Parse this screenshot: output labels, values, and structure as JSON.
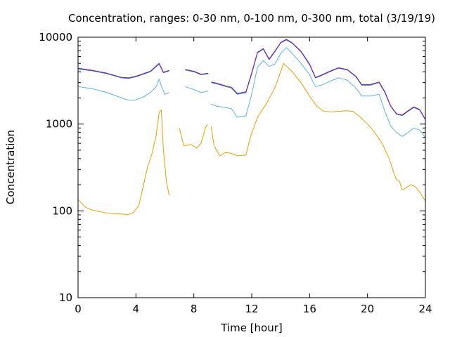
{
  "chart_data": {
    "type": "line",
    "title": "Concentration, ranges: 0-30 nm, 0-100 nm, 0-300 nm, total (3/19/19)",
    "xlabel": "Time [hour]",
    "ylabel": "Concentration",
    "xlim": [
      0,
      24
    ],
    "ylim": [
      10,
      10000
    ],
    "yscale": "log",
    "grid": false,
    "legend": "none",
    "xticks": [
      0,
      4,
      8,
      12,
      16,
      20,
      24
    ],
    "xtick_labels": [
      "0",
      "4",
      "8",
      "12",
      "16",
      "20",
      "24"
    ],
    "yticks": [
      10,
      100,
      1000,
      10000
    ],
    "ytick_labels": [
      "10",
      "100",
      "1000",
      "10000"
    ],
    "series": [
      {
        "color": "#e69f00",
        "segments": [
          [
            [
              0,
              135
            ],
            [
              0.5,
              110
            ],
            [
              1,
              102
            ],
            [
              1.5,
              98
            ],
            [
              2,
              94
            ],
            [
              2.5,
              93
            ],
            [
              3,
              92
            ],
            [
              3.4,
              90
            ],
            [
              3.8,
              95
            ],
            [
              4.2,
              115
            ],
            [
              4.5,
              190
            ],
            [
              4.8,
              320
            ],
            [
              5.1,
              450
            ],
            [
              5.4,
              750
            ],
            [
              5.6,
              1350
            ],
            [
              5.75,
              1450
            ],
            [
              5.9,
              500
            ],
            [
              6.1,
              220
            ],
            [
              6.3,
              150
            ]
          ],
          [
            [
              7.0,
              900
            ],
            [
              7.3,
              560
            ],
            [
              7.8,
              580
            ],
            [
              8.2,
              530
            ],
            [
              8.5,
              600
            ],
            [
              8.8,
              900
            ],
            [
              8.95,
              1000
            ]
          ],
          [
            [
              9.2,
              930
            ],
            [
              9.4,
              560
            ],
            [
              9.8,
              430
            ],
            [
              10.2,
              470
            ],
            [
              10.6,
              460
            ],
            [
              11,
              430
            ],
            [
              11.6,
              440
            ],
            [
              11.9,
              700
            ],
            [
              12.4,
              1200
            ],
            [
              13,
              1700
            ],
            [
              13.6,
              2600
            ],
            [
              14.2,
              5000
            ],
            [
              14.8,
              4000
            ],
            [
              15.4,
              3000
            ],
            [
              16,
              2100
            ],
            [
              16.5,
              1600
            ],
            [
              17,
              1400
            ],
            [
              17.5,
              1380
            ],
            [
              18,
              1400
            ],
            [
              18.5,
              1420
            ],
            [
              19,
              1400
            ],
            [
              19.5,
              1200
            ],
            [
              20,
              1000
            ],
            [
              20.5,
              800
            ],
            [
              21,
              600
            ],
            [
              21.5,
              400
            ],
            [
              21.8,
              280
            ],
            [
              22,
              230
            ],
            [
              22.2,
              220
            ],
            [
              22.4,
              175
            ],
            [
              22.7,
              185
            ],
            [
              23,
              200
            ],
            [
              23.3,
              190
            ],
            [
              23.6,
              165
            ],
            [
              24,
              130
            ]
          ]
        ]
      },
      {
        "color": "#56b4e9",
        "segments": [
          [
            [
              0,
              2700
            ],
            [
              1,
              2550
            ],
            [
              2,
              2300
            ],
            [
              3,
              2000
            ],
            [
              3.5,
              1880
            ],
            [
              4,
              1900
            ],
            [
              4.5,
              2050
            ],
            [
              5,
              2300
            ],
            [
              5.4,
              2700
            ],
            [
              5.6,
              3300
            ],
            [
              5.8,
              2600
            ],
            [
              6,
              2200
            ],
            [
              6.3,
              2300
            ]
          ],
          [
            [
              7.4,
              2700
            ],
            [
              8,
              2500
            ],
            [
              8.5,
              2300
            ],
            [
              9,
              2400
            ]
          ],
          [
            [
              9.2,
              1700
            ],
            [
              9.6,
              1600
            ],
            [
              10.2,
              1550
            ],
            [
              10.6,
              1500
            ],
            [
              11,
              1200
            ],
            [
              11.6,
              1250
            ],
            [
              12,
              2200
            ],
            [
              12.4,
              4500
            ],
            [
              12.8,
              5400
            ],
            [
              13.2,
              4600
            ],
            [
              13.6,
              4900
            ],
            [
              14,
              6500
            ],
            [
              14.4,
              7600
            ],
            [
              14.8,
              6500
            ],
            [
              15.4,
              5000
            ],
            [
              16,
              3700
            ],
            [
              16.4,
              2700
            ],
            [
              16.8,
              2800
            ],
            [
              17.4,
              3100
            ],
            [
              18,
              3400
            ],
            [
              18.6,
              3200
            ],
            [
              19.2,
              2600
            ],
            [
              19.6,
              2100
            ],
            [
              20.2,
              2100
            ],
            [
              20.8,
              2200
            ],
            [
              21.2,
              1400
            ],
            [
              21.6,
              950
            ],
            [
              22,
              800
            ],
            [
              22.4,
              720
            ],
            [
              22.8,
              800
            ],
            [
              23.2,
              900
            ],
            [
              23.6,
              850
            ],
            [
              24,
              700
            ]
          ]
        ]
      },
      {
        "color": "#009e73",
        "segments": [
          [
            [
              0,
              4300
            ],
            [
              1,
              4100
            ],
            [
              2,
              3800
            ],
            [
              3,
              3400
            ],
            [
              3.5,
              3350
            ],
            [
              4,
              3500
            ],
            [
              5,
              4000
            ],
            [
              5.6,
              4900
            ],
            [
              5.9,
              3900
            ],
            [
              6.3,
              4100
            ]
          ],
          [
            [
              7.4,
              4200
            ],
            [
              8,
              4000
            ],
            [
              8.5,
              3700
            ],
            [
              9,
              3800
            ]
          ],
          [
            [
              9.2,
              3000
            ],
            [
              9.6,
              2900
            ],
            [
              10.2,
              2700
            ],
            [
              10.6,
              2600
            ],
            [
              11,
              2200
            ],
            [
              11.6,
              2300
            ],
            [
              12,
              3800
            ],
            [
              12.4,
              6600
            ],
            [
              12.8,
              7300
            ],
            [
              13.2,
              5500
            ],
            [
              13.6,
              6800
            ],
            [
              14,
              8600
            ],
            [
              14.4,
              9300
            ],
            [
              14.8,
              8500
            ],
            [
              15.4,
              6800
            ],
            [
              16,
              4800
            ],
            [
              16.4,
              3400
            ],
            [
              16.8,
              3600
            ],
            [
              17.4,
              4000
            ],
            [
              18,
              4400
            ],
            [
              18.6,
              4200
            ],
            [
              19.2,
              3500
            ],
            [
              19.6,
              2800
            ],
            [
              20.2,
              2800
            ],
            [
              20.8,
              3000
            ],
            [
              21.2,
              2300
            ],
            [
              21.6,
              1600
            ],
            [
              22,
              1300
            ],
            [
              22.4,
              1250
            ],
            [
              22.8,
              1400
            ],
            [
              23.2,
              1550
            ],
            [
              23.6,
              1450
            ],
            [
              24,
              1120
            ]
          ]
        ]
      },
      {
        "color": "#9400d3",
        "segments": [
          [
            [
              0,
              4400
            ],
            [
              1,
              4150
            ],
            [
              2,
              3850
            ],
            [
              3,
              3450
            ],
            [
              3.5,
              3400
            ],
            [
              4,
              3550
            ],
            [
              5,
              4050
            ],
            [
              5.6,
              5000
            ],
            [
              5.9,
              3950
            ],
            [
              6.3,
              4150
            ]
          ],
          [
            [
              7.4,
              4250
            ],
            [
              8,
              4050
            ],
            [
              8.5,
              3750
            ],
            [
              9,
              3850
            ]
          ],
          [
            [
              9.2,
              3050
            ],
            [
              9.6,
              2950
            ],
            [
              10.2,
              2750
            ],
            [
              10.6,
              2650
            ],
            [
              11,
              2250
            ],
            [
              11.6,
              2350
            ],
            [
              12,
              3900
            ],
            [
              12.4,
              6700
            ],
            [
              12.8,
              7400
            ],
            [
              13.2,
              5600
            ],
            [
              13.6,
              6900
            ],
            [
              14,
              8700
            ],
            [
              14.4,
              9450
            ],
            [
              14.8,
              8600
            ],
            [
              15.4,
              6900
            ],
            [
              16,
              4900
            ],
            [
              16.4,
              3450
            ],
            [
              16.8,
              3650
            ],
            [
              17.4,
              4050
            ],
            [
              18,
              4450
            ],
            [
              18.6,
              4250
            ],
            [
              19.2,
              3550
            ],
            [
              19.6,
              2850
            ],
            [
              20.2,
              2850
            ],
            [
              20.8,
              3050
            ],
            [
              21.2,
              2350
            ],
            [
              21.6,
              1620
            ],
            [
              22,
              1320
            ],
            [
              22.4,
              1270
            ],
            [
              22.8,
              1420
            ],
            [
              23.2,
              1580
            ],
            [
              23.6,
              1470
            ],
            [
              24,
              1130
            ]
          ]
        ]
      }
    ]
  }
}
